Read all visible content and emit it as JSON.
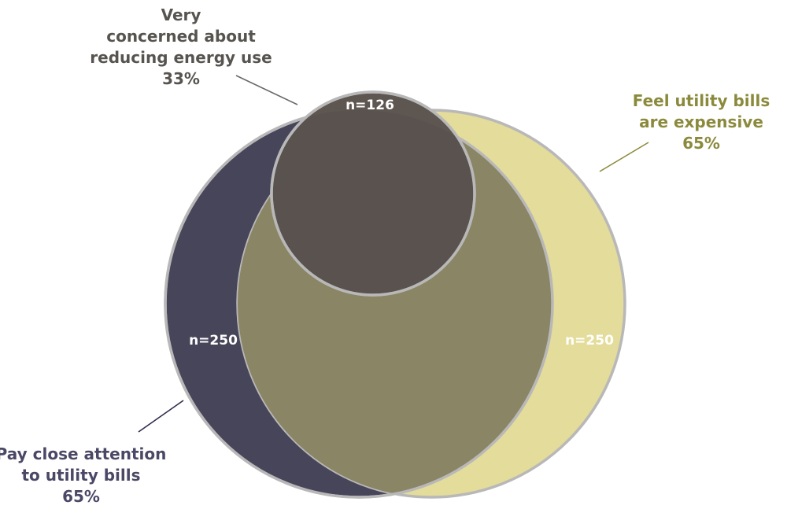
{
  "sets": [
    {
      "id": "attention",
      "label_lines": [
        "Pay close attention",
        "to utility bills",
        "65%"
      ],
      "n_label": "n=250",
      "color": "#474559"
    },
    {
      "id": "expensive",
      "label_lines": [
        "Feel utility bills",
        "are expensive",
        "65%"
      ],
      "n_label": "n=250",
      "color": "#e3dc9a"
    },
    {
      "id": "concerned",
      "label_lines": [
        "Very",
        "concerned about",
        "reducing energy use",
        "33%"
      ],
      "n_label": "n=126",
      "color": "#5e5650"
    }
  ],
  "colors": {
    "attention_text": "#4a4866",
    "expensive_text": "#8b8a3c",
    "concerned_text": "#575450",
    "overlap_attention_expensive": "#8a8565",
    "circle_stroke": "#b9b8b8"
  }
}
